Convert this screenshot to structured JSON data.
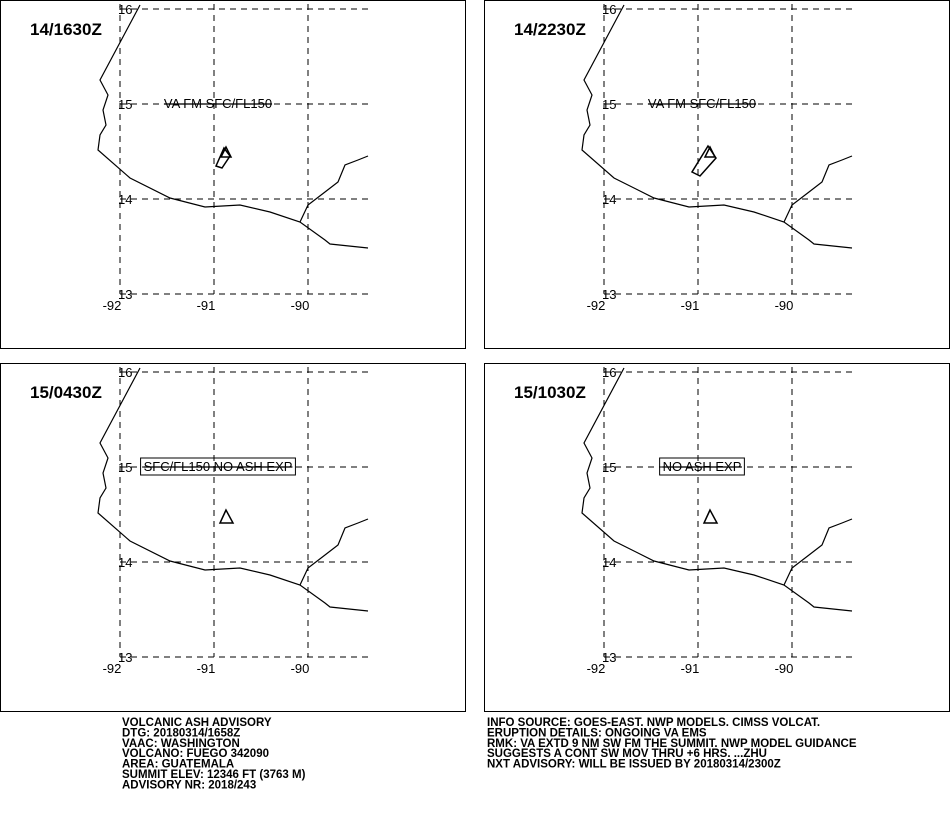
{
  "panels": [
    {
      "time": "14/1630Z",
      "label": "VA FM SFC/FL150",
      "boxed": false
    },
    {
      "time": "14/2230Z",
      "label": "VA FM SFC/FL150",
      "boxed": false
    },
    {
      "time": "15/0430Z",
      "label": "SFC/FL150 NO ASH EXP",
      "boxed": true
    },
    {
      "time": "15/1030Z",
      "label": "NO ASH EXP",
      "boxed": true
    }
  ],
  "lat_ticks": [
    16,
    15,
    14,
    13
  ],
  "lon_ticks": [
    -92,
    -91,
    -90
  ],
  "advisory_left": [
    "VOLCANIC ASH ADVISORY",
    "DTG: 20180314/1658Z",
    "VAAC: WASHINGTON",
    "VOLCANO: FUEGO 342090",
    "AREA: GUATEMALA",
    "SUMMIT ELEV: 12346 FT (3763 M)",
    "ADVISORY NR: 2018/243"
  ],
  "advisory_right": [
    "INFO SOURCE: GOES-EAST. NWP MODELS. CIMSS VOLCAT.",
    "ERUPTION DETAILS: ONGOING VA EMS",
    "RMK: VA EXTD 9 NM SW FM THE SUMMIT. NWP MODEL GUIDANCE",
    "SUGGESTS A CONT SW MOV THRU +6 HRS. ...ZHU",
    "NXT ADVISORY: WILL BE ISSUED BY 20180314/2300Z"
  ]
}
